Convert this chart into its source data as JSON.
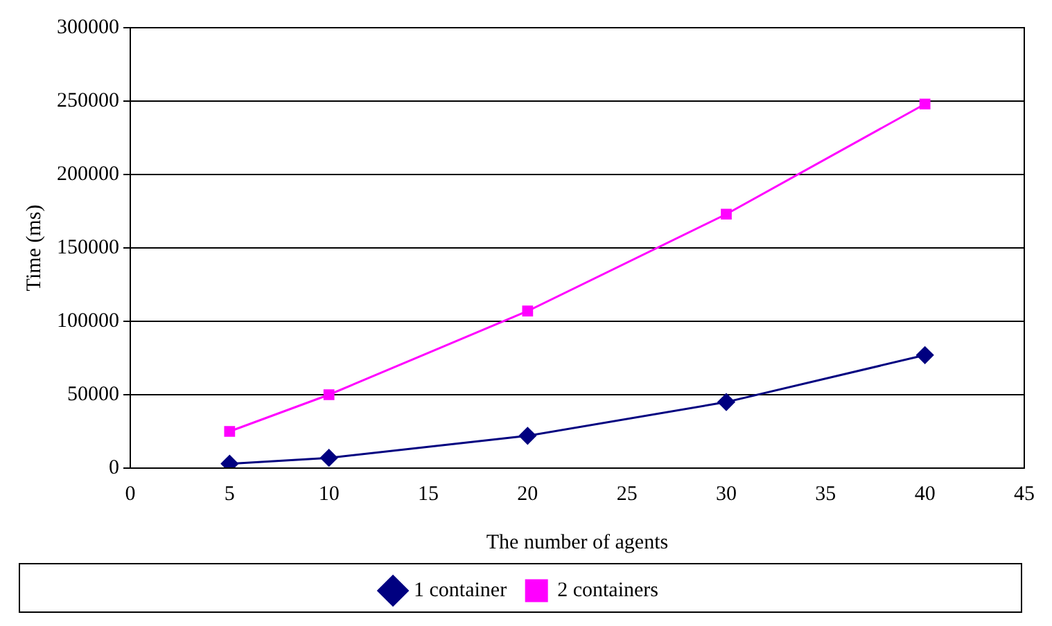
{
  "chart_data": {
    "type": "line",
    "xlabel": "The number of agents",
    "ylabel": "Time (ms)",
    "x": [
      5,
      10,
      20,
      30,
      40
    ],
    "series": [
      {
        "name": "1 container",
        "color": "#000080",
        "marker": "diamond",
        "values": [
          3000,
          7000,
          22000,
          45000,
          77000
        ]
      },
      {
        "name": "2 containers",
        "color": "#ff00ff",
        "marker": "square",
        "values": [
          25000,
          50000,
          107000,
          173000,
          248000
        ]
      }
    ],
    "xlim": [
      0,
      45
    ],
    "xticks": [
      0,
      5,
      10,
      15,
      20,
      25,
      30,
      35,
      40,
      45
    ],
    "ylim": [
      0,
      300000
    ],
    "yticks": [
      0,
      50000,
      100000,
      150000,
      200000,
      250000,
      300000
    ],
    "grid": "y",
    "legend": "bottom",
    "line_style": "solid"
  }
}
